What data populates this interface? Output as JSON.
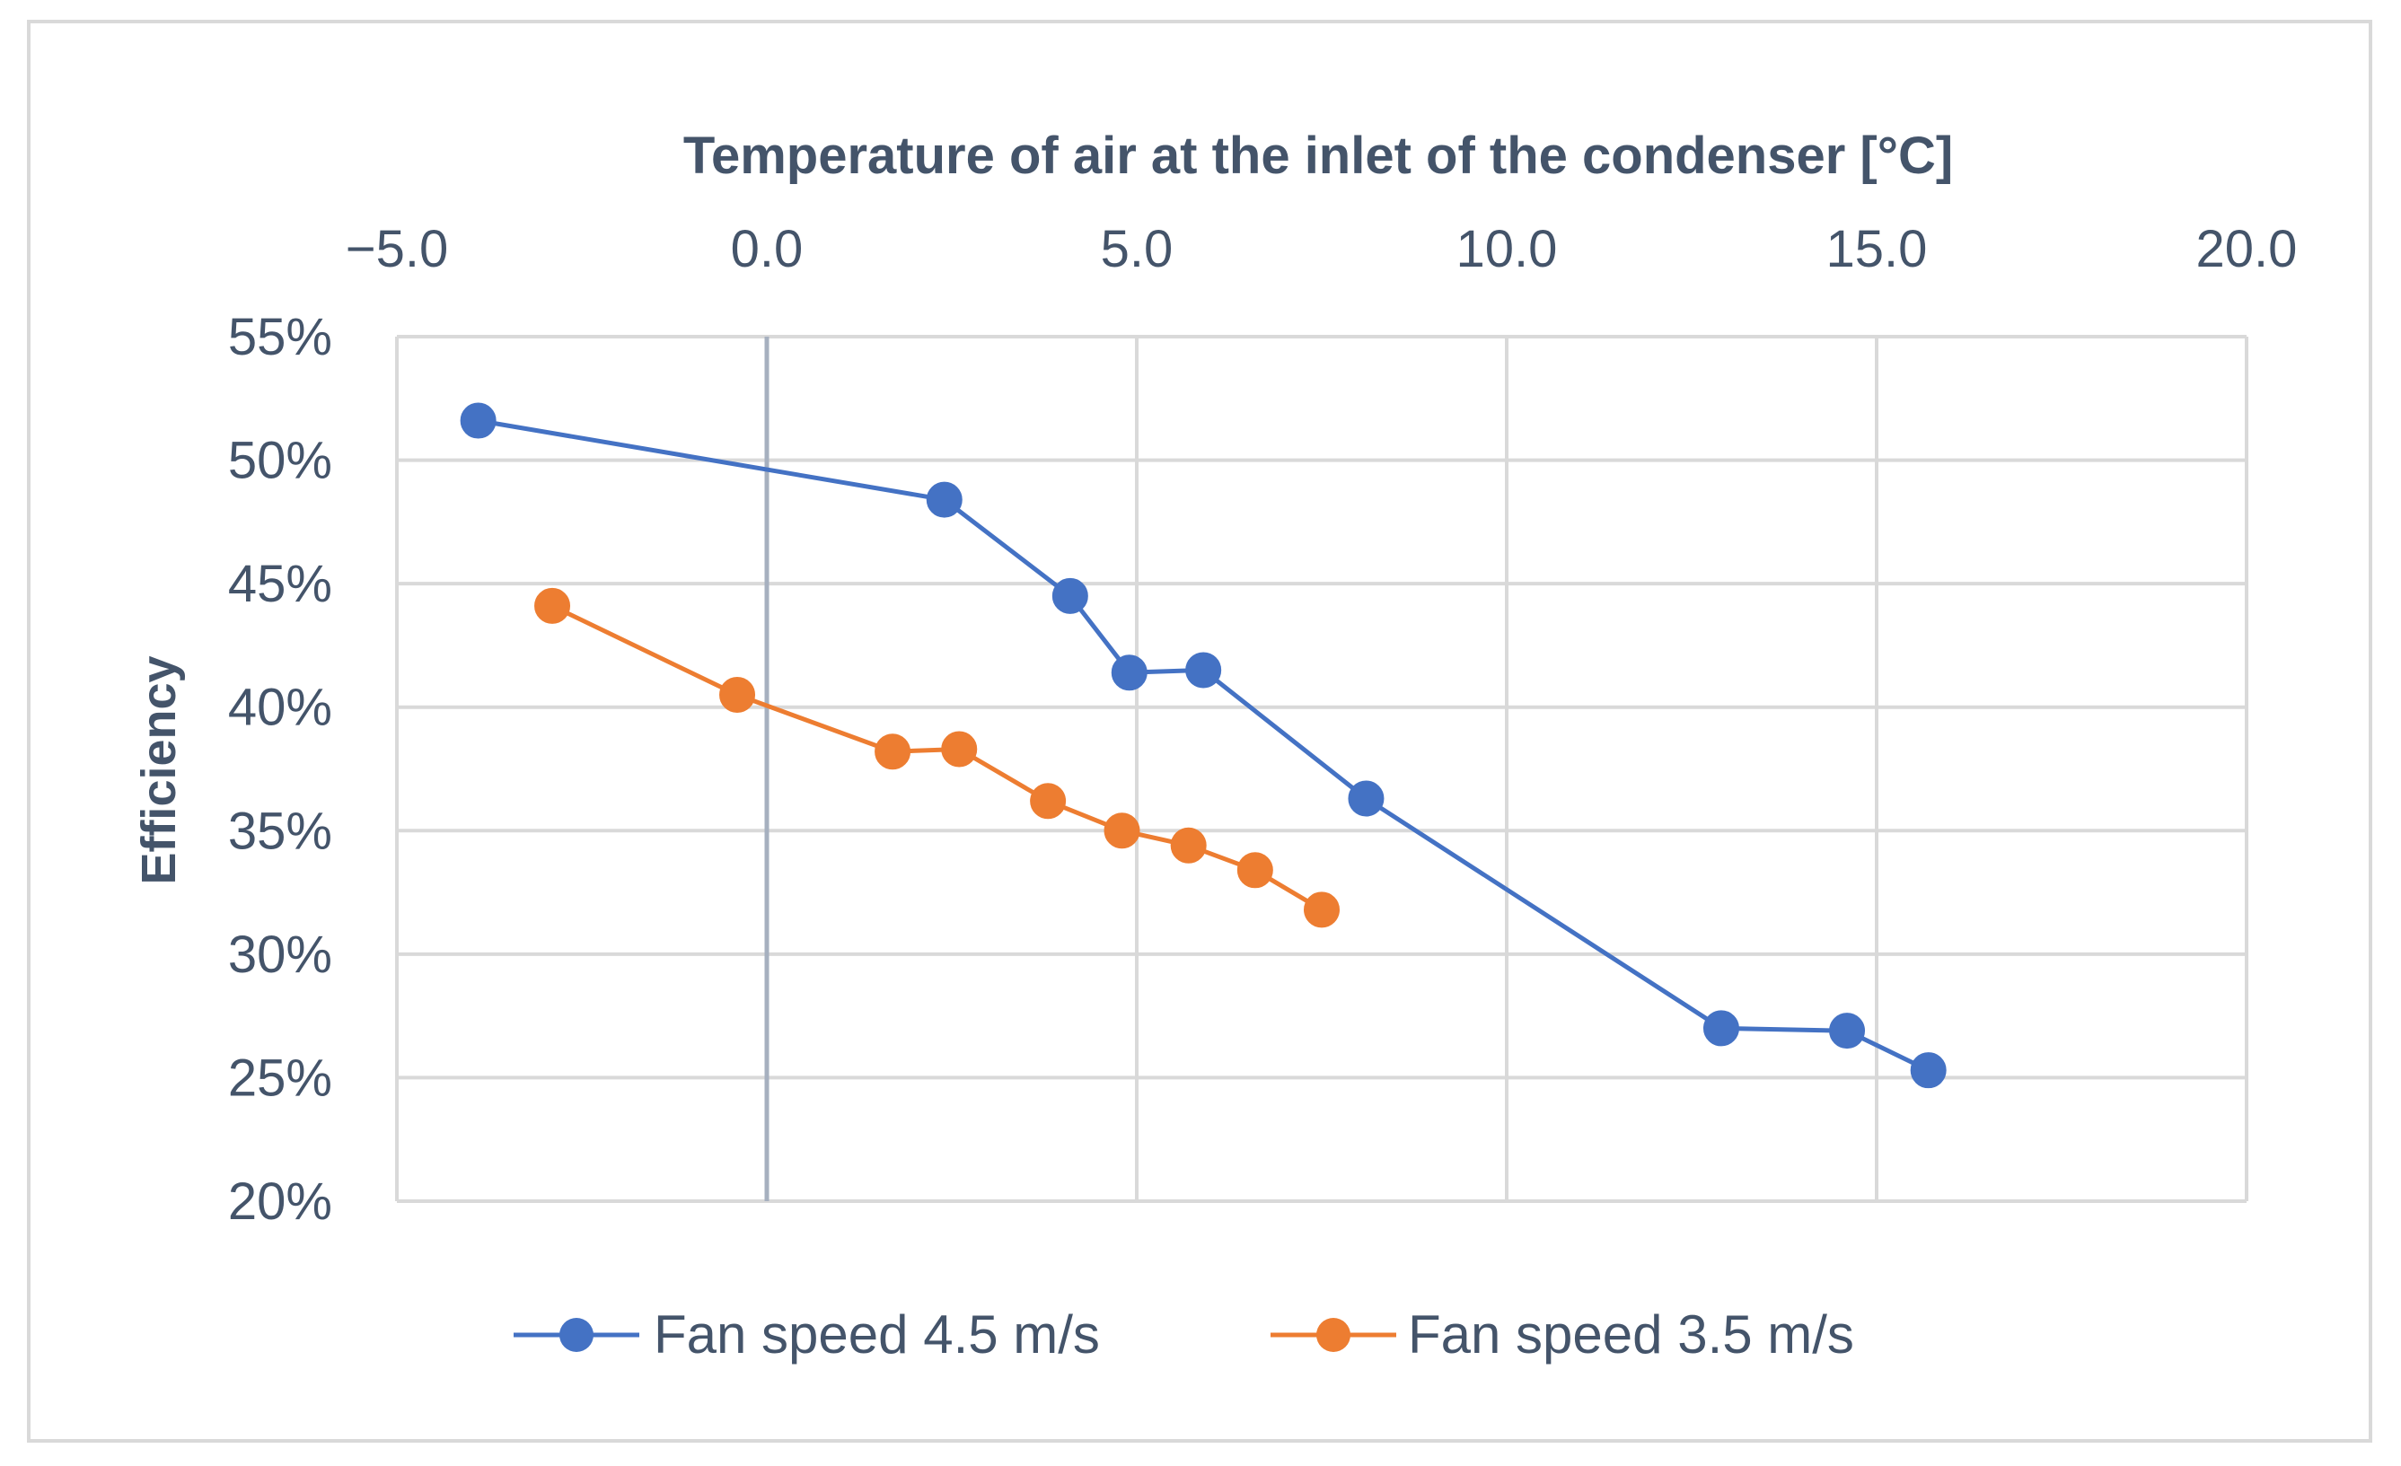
{
  "chart_data": {
    "type": "scatter",
    "title": "",
    "xlabel": "Temperature of air at the inlet of the condenser [°C]",
    "ylabel": "Efficiency",
    "xlim": [
      -5,
      20
    ],
    "ylim": [
      0.2,
      0.55
    ],
    "x_ticks": [
      "−5.0",
      "0.0",
      "5.0",
      "10.0",
      "15.0",
      "20.0"
    ],
    "x_tick_values": [
      -5,
      0,
      5,
      10,
      15,
      20
    ],
    "y_ticks": [
      "20%",
      "25%",
      "30%",
      "35%",
      "40%",
      "45%",
      "50%",
      "55%"
    ],
    "y_tick_values": [
      0.2,
      0.25,
      0.3,
      0.35,
      0.4,
      0.45,
      0.5,
      0.55
    ],
    "x_axis_position": "top",
    "grid": true,
    "legend_position": "bottom",
    "series": [
      {
        "name": "Fan speed 4.5 m/s",
        "color": "#4472c4",
        "points": [
          [
            -3.9,
            0.516
          ],
          [
            2.4,
            0.484
          ],
          [
            4.1,
            0.445
          ],
          [
            4.9,
            0.414
          ],
          [
            5.9,
            0.415
          ],
          [
            8.1,
            0.363
          ],
          [
            12.9,
            0.27
          ],
          [
            14.6,
            0.269
          ],
          [
            15.7,
            0.253
          ]
        ]
      },
      {
        "name": "Fan speed 3.5 m/s",
        "color": "#ed7d31",
        "points": [
          [
            -2.9,
            0.441
          ],
          [
            -0.4,
            0.405
          ],
          [
            1.7,
            0.382
          ],
          [
            2.6,
            0.383
          ],
          [
            3.8,
            0.362
          ],
          [
            4.8,
            0.35
          ],
          [
            5.7,
            0.344
          ],
          [
            6.6,
            0.334
          ],
          [
            7.5,
            0.318
          ]
        ]
      }
    ]
  }
}
